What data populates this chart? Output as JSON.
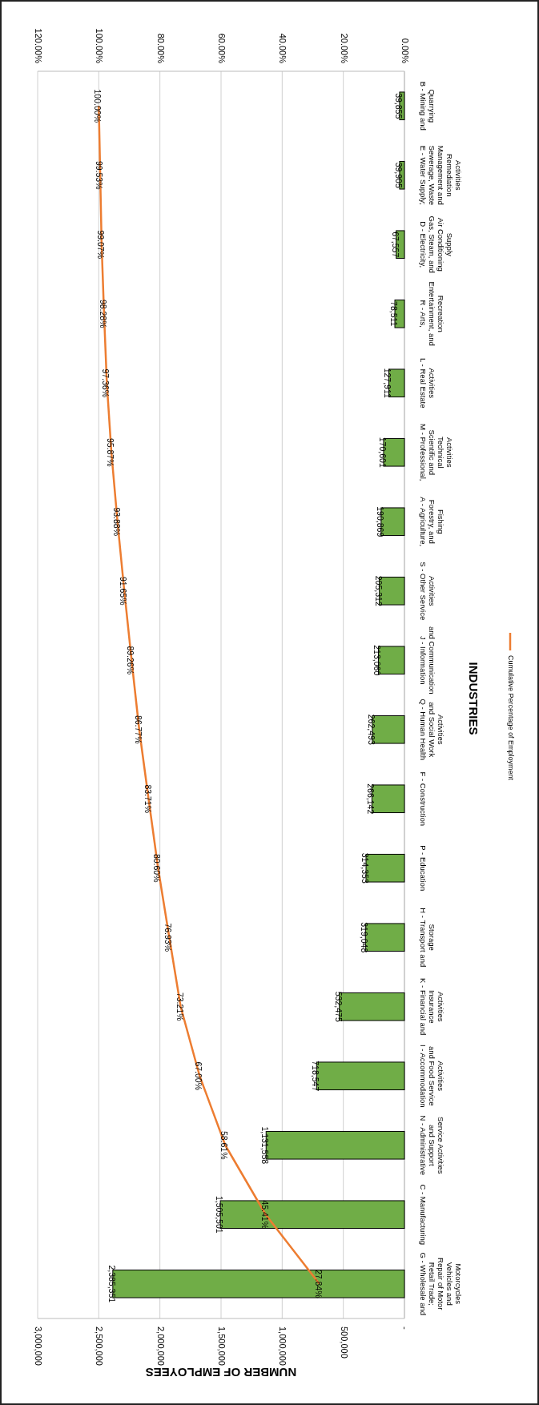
{
  "chart_data": {
    "type": "bar",
    "orientation": "horizontal",
    "xlabel": "NUMBER OF EMPLOYEES",
    "ylabel": "INDUSTRIES",
    "categories": [
      "B - Mining and Quarrying",
      "E - Water Supply; Sewerage, Waste Management and Remediation Activities",
      "D - Electricity, Gas, Steam, and Air Conditioning Supply",
      "R - Arts, Entertainment, and Recreation",
      "L - Real Estate Activities",
      "M - Professional, Scientific and Technical Activities",
      "A - Agriculture, Forestry, and Fishing",
      "S - Other Service Activities",
      "J - Information and Communication",
      "Q - Human Health and Social Work Activities",
      "F - Construction",
      "P - Education",
      "H - Transport and Storage",
      "K - Financial and Insurance Activities",
      "I - Accommodation and Food Service Activities",
      "N - Administrative and Support Service Activities",
      "C - Manufacturing",
      "G - Wholesale and Retail Trade; Repair of Motor Vehicles and Motorcycles"
    ],
    "series": [
      {
        "color": "#70ad47",
        "values": [
          39855,
          39905,
          67557,
          78511,
          127911,
          170601,
          190869,
          205312,
          213060,
          262493,
          266142,
          314353,
          319048,
          532475,
          718547,
          1131558,
          1505501,
          2385351
        ],
        "value_labels": [
          "39,855",
          "39,905",
          "67,557",
          "78,511",
          "127,911",
          "170,601",
          "190,869",
          "205,312",
          "213,060",
          "262,493",
          "266,142",
          "314,353",
          "319,048",
          "532,475",
          "718,547",
          "1,131,558",
          "1,505,501",
          "2,385,351"
        ]
      },
      {
        "type": "line",
        "name": "Cumulative Percentage of Employment",
        "color": "#ed7d31",
        "axis": "x2",
        "values": [
          100.0,
          99.53,
          99.07,
          98.28,
          97.36,
          95.87,
          93.88,
          91.65,
          89.26,
          86.77,
          83.71,
          80.6,
          76.93,
          73.21,
          67.0,
          58.61,
          45.41,
          27.84
        ],
        "value_labels": [
          "100.00%",
          "99.53%",
          "99.07%",
          "98.28%",
          "97.36%",
          "95.87%",
          "93.88%",
          "91.65%",
          "89.26%",
          "86.77%",
          "83.71%",
          "80.60%",
          "76.93%",
          "73.21%",
          "67.00%",
          "58.61%",
          "45.41%",
          "27.84%"
        ]
      }
    ],
    "xlim": [
      3000000,
      0
    ],
    "xticks": [
      {
        "value": 0,
        "label": "-"
      },
      {
        "value": 500000,
        "label": "500,000"
      },
      {
        "value": 1000000,
        "label": "1,000,000"
      },
      {
        "value": 1500000,
        "label": "1,500,000"
      },
      {
        "value": 2000000,
        "label": "2,000,000"
      },
      {
        "value": 2500000,
        "label": "2,500,000"
      },
      {
        "value": 3000000,
        "label": "3,000,000"
      }
    ],
    "x2lim": [
      120,
      0
    ],
    "x2ticks": [
      {
        "value": 0,
        "label": "0.00%"
      },
      {
        "value": 20,
        "label": "20.00%"
      },
      {
        "value": 40,
        "label": "40.00%"
      },
      {
        "value": 60,
        "label": "60.00%"
      },
      {
        "value": 80,
        "label": "80.00%"
      },
      {
        "value": 100,
        "label": "100.00%"
      },
      {
        "value": 120,
        "label": "120.00%"
      }
    ],
    "grid": "x",
    "legend": "right"
  }
}
